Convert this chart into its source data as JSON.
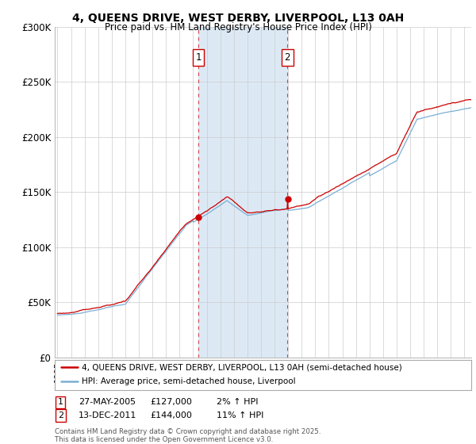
{
  "title_line1": "4, QUEENS DRIVE, WEST DERBY, LIVERPOOL, L13 0AH",
  "title_line2": "Price paid vs. HM Land Registry's House Price Index (HPI)",
  "ylim": [
    0,
    300000
  ],
  "yticks": [
    0,
    50000,
    100000,
    150000,
    200000,
    250000,
    300000
  ],
  "ytick_labels": [
    "£0",
    "£50K",
    "£100K",
    "£150K",
    "£200K",
    "£250K",
    "£300K"
  ],
  "x_start_year": 1995,
  "x_end_year": 2026,
  "sale1_date": 2005.38,
  "sale1_price": 127000,
  "sale1_label": "1",
  "sale2_date": 2011.95,
  "sale2_price": 144000,
  "sale2_label": "2",
  "hpi_line_color": "#7bafd4",
  "price_line_color": "#cc0000",
  "shading_color": "#dce9f5",
  "grid_color": "#cccccc",
  "annotation_box_color": "#cc0000",
  "legend_label_price": "4, QUEENS DRIVE, WEST DERBY, LIVERPOOL, L13 0AH (semi-detached house)",
  "legend_label_hpi": "HPI: Average price, semi-detached house, Liverpool",
  "footnote": "Contains HM Land Registry data © Crown copyright and database right 2025.\nThis data is licensed under the Open Government Licence v3.0.",
  "background_color": "#ffffff"
}
